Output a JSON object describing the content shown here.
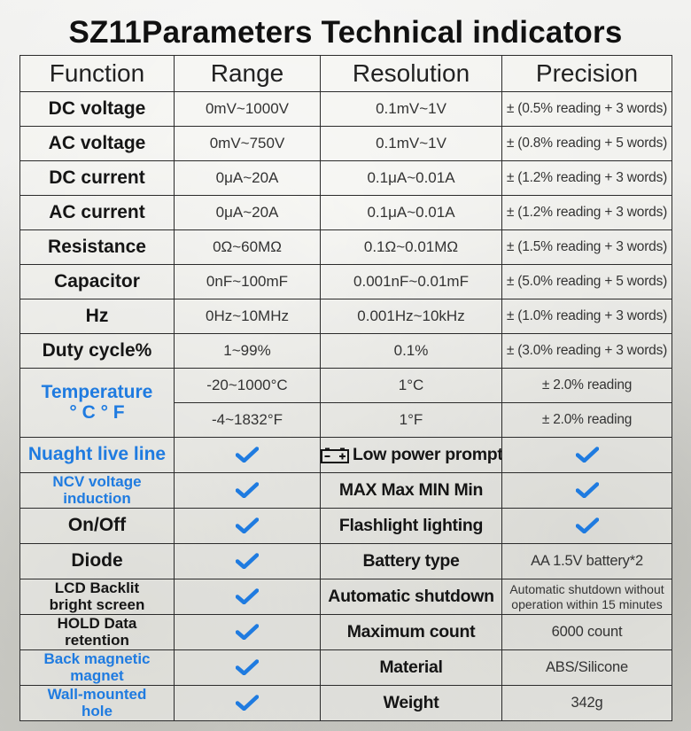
{
  "title": "SZ11Parameters Technical indicators",
  "header": {
    "function": "Function",
    "range": "Range",
    "resolution": "Resolution",
    "precision": "Precision"
  },
  "measurements": [
    {
      "function": "DC voltage",
      "range": "0mV~1000V",
      "resolution": "0.1mV~1V",
      "precision": "± (0.5% reading + 3 words)"
    },
    {
      "function": "AC voltage",
      "range": "0mV~750V",
      "resolution": "0.1mV~1V",
      "precision": "± (0.8% reading + 5 words)"
    },
    {
      "function": "DC current",
      "range": "0μA~20A",
      "resolution": "0.1μA~0.01A",
      "precision": "± (1.2% reading + 3 words)"
    },
    {
      "function": "AC current",
      "range": "0μA~20A",
      "resolution": "0.1μA~0.01A",
      "precision": "± (1.2% reading + 3 words)"
    },
    {
      "function": "Resistance",
      "range": "0Ω~60MΩ",
      "resolution": "0.1Ω~0.01MΩ",
      "precision": "± (1.5% reading + 3 words)"
    },
    {
      "function": "Capacitor",
      "range": "0nF~100mF",
      "resolution": "0.001nF~0.01mF",
      "precision": "± (5.0% reading + 5 words)"
    },
    {
      "function": "Hz",
      "range": "0Hz~10MHz",
      "resolution": "0.001Hz~10kHz",
      "precision": "± (1.0% reading + 3 words)"
    },
    {
      "function": "Duty cycle%",
      "range": "1~99%",
      "resolution": "0.1%",
      "precision": "± (3.0% reading + 3 words)"
    }
  ],
  "temperature": {
    "function_line1": "Temperature",
    "function_line2": "° C ° F",
    "celsius": {
      "range": "-20~1000°C",
      "resolution": "1°C",
      "precision": "± 2.0% reading"
    },
    "fahrenheit": {
      "range": "-4~1832°F",
      "resolution": "1°F",
      "precision": "± 2.0% reading"
    }
  },
  "features": [
    {
      "left_line1": "Nuaght live line",
      "left_line2": "",
      "left_blue": true,
      "left_check": true,
      "right_label": "Low power prompt",
      "right_value": "",
      "right_check": true,
      "battery_icon": true
    },
    {
      "left_line1": "NCV voltage",
      "left_line2": "induction",
      "left_blue": true,
      "left_check": true,
      "right_label": "MAX Max MIN Min",
      "right_value": "",
      "right_check": true
    },
    {
      "left_line1": "On/Off",
      "left_line2": "",
      "left_blue": false,
      "left_check": true,
      "right_label": "Flashlight lighting",
      "right_value": "",
      "right_check": true
    },
    {
      "left_line1": "Diode",
      "left_line2": "",
      "left_blue": false,
      "left_check": true,
      "right_label": "Battery type",
      "right_value": "AA 1.5V battery*2",
      "right_check": false
    },
    {
      "left_line1": "LCD Backlit",
      "left_line2": "bright screen",
      "left_blue": false,
      "left_check": true,
      "right_label": "Automatic shutdown",
      "right_value_line1": "Automatic shutdown without",
      "right_value_line2": "operation within 15 minutes",
      "right_check": false
    },
    {
      "left_line1": "HOLD Data",
      "left_line2": "retention",
      "left_blue": false,
      "left_check": true,
      "right_label": "Maximum count",
      "right_value": "6000 count",
      "right_check": false
    },
    {
      "left_line1": "Back magnetic",
      "left_line2": "magnet",
      "left_blue": true,
      "left_check": true,
      "right_label": "Material",
      "right_value": "ABS/Silicone",
      "right_check": false
    },
    {
      "left_line1": "Wall-mounted",
      "left_line2": "hole",
      "left_blue": true,
      "left_check": true,
      "right_label": "Weight",
      "right_value": "342g",
      "right_check": false
    }
  ],
  "colors": {
    "accent_blue": "#1f7be0",
    "border": "#2b2b2b",
    "text": "#151515"
  },
  "icons": {
    "check": "check-icon",
    "battery": "battery-icon"
  }
}
